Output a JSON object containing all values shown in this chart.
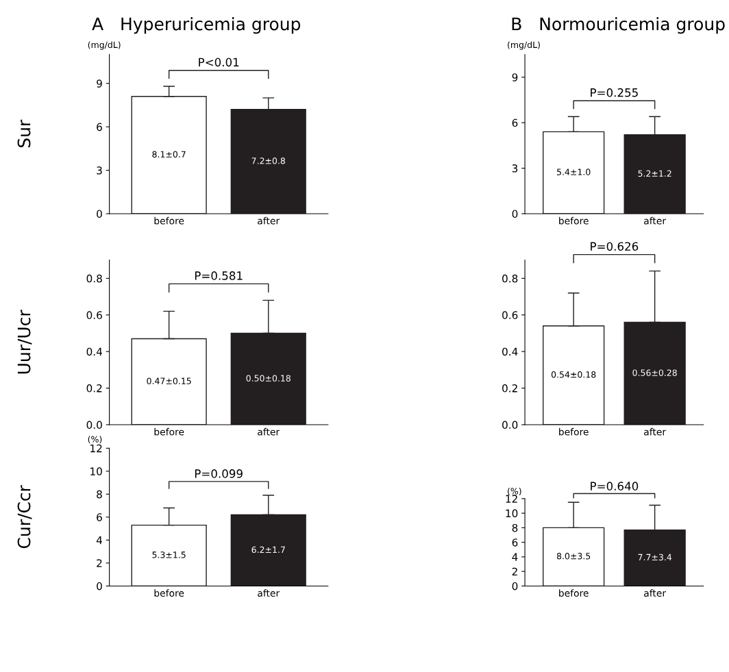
{
  "chart_data": [
    {
      "type": "bar",
      "title": "A   Hyperuricemia group",
      "ylabel": "Sur",
      "annotations": [
        "(mg/dL)",
        "P<0.01"
      ],
      "categories": [
        "before",
        "after"
      ],
      "values": [
        8.1,
        7.2
      ],
      "errors": [
        0.7,
        0.8
      ],
      "colors": [
        "#ffffff",
        "#231f20"
      ],
      "value_labels": [
        "8.1±0.7",
        "7.2±0.8"
      ],
      "ylim": [
        0,
        11
      ],
      "yticks": [
        0,
        3,
        6,
        9
      ],
      "grid": false
    },
    {
      "type": "bar",
      "title": "B   Normouricemia group",
      "annotations": [
        "(mg/dL)",
        "P=0.255"
      ],
      "categories": [
        "before",
        "after"
      ],
      "values": [
        5.4,
        5.2
      ],
      "errors": [
        1.0,
        1.2
      ],
      "colors": [
        "#ffffff",
        "#231f20"
      ],
      "value_labels": [
        "5.4±1.0",
        "5.2±1.2"
      ],
      "ylim": [
        0,
        10.5
      ],
      "yticks": [
        0,
        3,
        6,
        9
      ],
      "grid": false
    },
    {
      "type": "bar",
      "ylabel": "Uur/Ucr",
      "annotations": [
        "P=0.581"
      ],
      "categories": [
        "before",
        "after"
      ],
      "values": [
        0.47,
        0.5
      ],
      "errors": [
        0.15,
        0.18
      ],
      "colors": [
        "#ffffff",
        "#231f20"
      ],
      "value_labels": [
        "0.47±0.15",
        "0.50±0.18"
      ],
      "ylim": [
        0,
        0.9
      ],
      "yticks": [
        {
          "value": 0,
          "label": "0.0"
        },
        0.2,
        0.4,
        0.6,
        0.8
      ],
      "grid": false
    },
    {
      "type": "bar",
      "annotations": [
        "P=0.626"
      ],
      "categories": [
        "before",
        "after"
      ],
      "values": [
        0.54,
        0.56
      ],
      "errors": [
        0.18,
        0.28
      ],
      "colors": [
        "#ffffff",
        "#231f20"
      ],
      "value_labels": [
        "0.54±0.18",
        "0.56±0.28"
      ],
      "ylim": [
        0,
        0.9
      ],
      "yticks": [
        {
          "value": 0,
          "label": "0.0"
        },
        0.2,
        0.4,
        0.6,
        0.8
      ],
      "grid": false
    },
    {
      "type": "bar",
      "ylabel": "Cur/Ccr",
      "annotations": [
        "(%)",
        "P=0.099"
      ],
      "categories": [
        "before",
        "after"
      ],
      "values": [
        5.3,
        6.2
      ],
      "errors": [
        1.5,
        1.7
      ],
      "colors": [
        "#ffffff",
        "#231f20"
      ],
      "value_labels": [
        "5.3±1.5",
        "6.2±1.7"
      ],
      "ylim": [
        0,
        12
      ],
      "yticks": [
        0,
        2,
        4,
        6,
        8,
        10,
        12
      ],
      "grid": false
    },
    {
      "type": "bar",
      "annotations": [
        "(%)",
        "P=0.640"
      ],
      "categories": [
        "before",
        "after"
      ],
      "values": [
        8.0,
        7.7
      ],
      "errors": [
        3.5,
        3.4
      ],
      "colors": [
        "#ffffff",
        "#231f20"
      ],
      "value_labels": [
        "8.0±3.5",
        "7.7±3.4"
      ],
      "ylim": [
        0,
        12
      ],
      "yticks": [
        0,
        2,
        4,
        6,
        8,
        10,
        12
      ],
      "grid": false
    }
  ]
}
